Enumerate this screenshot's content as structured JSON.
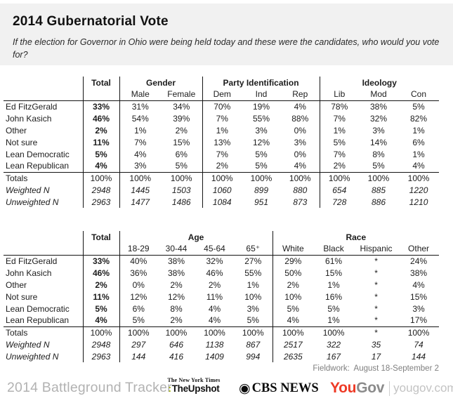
{
  "header": {
    "title": "2014 Gubernatorial Vote",
    "subtitle": "If the election for Governor in Ohio were being held today and these were the candidates, who would you vote for?"
  },
  "table1": {
    "total_label": "Total",
    "groups": [
      {
        "label": "Gender",
        "cols": [
          "Male",
          "Female"
        ]
      },
      {
        "label": "Party Identification",
        "cols": [
          "Dem",
          "Ind",
          "Rep"
        ]
      },
      {
        "label": "Ideology",
        "cols": [
          "Lib",
          "Mod",
          "Con"
        ]
      }
    ],
    "rows": [
      {
        "label": "Ed FitzGerald",
        "total": "33%",
        "values": [
          "31%",
          "34%",
          "70%",
          "19%",
          "4%",
          "78%",
          "38%",
          "5%"
        ]
      },
      {
        "label": "John Kasich",
        "total": "46%",
        "values": [
          "54%",
          "39%",
          "7%",
          "55%",
          "88%",
          "7%",
          "32%",
          "82%"
        ]
      },
      {
        "label": "Other",
        "total": "2%",
        "values": [
          "1%",
          "2%",
          "1%",
          "3%",
          "0%",
          "1%",
          "3%",
          "1%"
        ]
      },
      {
        "label": "Not sure",
        "total": "11%",
        "values": [
          "7%",
          "15%",
          "13%",
          "12%",
          "3%",
          "5%",
          "14%",
          "6%"
        ]
      },
      {
        "label": "Lean Democratic",
        "total": "5%",
        "values": [
          "4%",
          "6%",
          "7%",
          "5%",
          "0%",
          "7%",
          "8%",
          "1%"
        ]
      },
      {
        "label": "Lean Republican",
        "total": "4%",
        "values": [
          "3%",
          "5%",
          "2%",
          "5%",
          "4%",
          "2%",
          "5%",
          "4%"
        ]
      }
    ],
    "summary": [
      {
        "label": "Totals",
        "total": "100%",
        "italic": false,
        "values": [
          "100%",
          "100%",
          "100%",
          "100%",
          "100%",
          "100%",
          "100%",
          "100%"
        ]
      },
      {
        "label": "Weighted N",
        "total": "2948",
        "italic": true,
        "values": [
          "1445",
          "1503",
          "1060",
          "899",
          "880",
          "654",
          "885",
          "1220"
        ]
      },
      {
        "label": "Unweighted N",
        "total": "2963",
        "italic": true,
        "values": [
          "1477",
          "1486",
          "1084",
          "951",
          "873",
          "728",
          "886",
          "1210"
        ]
      }
    ]
  },
  "table2": {
    "total_label": "Total",
    "groups": [
      {
        "label": "Age",
        "cols": [
          "18-29",
          "30-44",
          "45-64",
          "65⁺"
        ]
      },
      {
        "label": "Race",
        "cols": [
          "White",
          "Black",
          "Hispanic",
          "Other"
        ]
      }
    ],
    "rows": [
      {
        "label": "Ed FitzGerald",
        "total": "33%",
        "values": [
          "40%",
          "38%",
          "32%",
          "27%",
          "29%",
          "61%",
          "*",
          "24%"
        ]
      },
      {
        "label": "John Kasich",
        "total": "46%",
        "values": [
          "36%",
          "38%",
          "46%",
          "55%",
          "50%",
          "15%",
          "*",
          "38%"
        ]
      },
      {
        "label": "Other",
        "total": "2%",
        "values": [
          "0%",
          "2%",
          "2%",
          "1%",
          "2%",
          "1%",
          "*",
          "4%"
        ]
      },
      {
        "label": "Not sure",
        "total": "11%",
        "values": [
          "12%",
          "12%",
          "11%",
          "10%",
          "10%",
          "16%",
          "*",
          "15%"
        ]
      },
      {
        "label": "Lean Democratic",
        "total": "5%",
        "values": [
          "6%",
          "8%",
          "4%",
          "3%",
          "5%",
          "5%",
          "*",
          "3%"
        ]
      },
      {
        "label": "Lean Republican",
        "total": "4%",
        "values": [
          "5%",
          "2%",
          "4%",
          "5%",
          "4%",
          "1%",
          "*",
          "17%"
        ]
      }
    ],
    "summary": [
      {
        "label": "Totals",
        "total": "100%",
        "italic": false,
        "values": [
          "100%",
          "100%",
          "100%",
          "100%",
          "100%",
          "100%",
          "*",
          "100%"
        ]
      },
      {
        "label": "Weighted N",
        "total": "2948",
        "italic": true,
        "values": [
          "297",
          "646",
          "1138",
          "867",
          "2517",
          "322",
          "35",
          "74"
        ]
      },
      {
        "label": "Unweighted N",
        "total": "2963",
        "italic": true,
        "values": [
          "144",
          "416",
          "1409",
          "994",
          "2635",
          "167",
          "17",
          "144"
        ]
      }
    ]
  },
  "fieldwork": "Fieldwork:  August 18-September 2",
  "footer": {
    "tracker": "2014 Battleground Tracker",
    "nyt_masthead": "The New York Times",
    "nyt_colon": ":",
    "nyt_upshot": "TheUpshot",
    "cbs_eye": "◉",
    "cbs_text": "CBS NEWS",
    "yougov_you": "You",
    "yougov_gov": "Gov",
    "yougov_domain": "yougov.com"
  },
  "colors": {
    "header_band": "#f1f1f1",
    "table_line": "#141414",
    "gray_text": "#7f7f7f",
    "tracker_gray": "#b2b2b2",
    "upshot_green": "#a3b400",
    "yougov_red": "#ee3a26",
    "yougov_gray": "#8b8b8b",
    "yougov_light_gray": "#c3c3c3"
  }
}
